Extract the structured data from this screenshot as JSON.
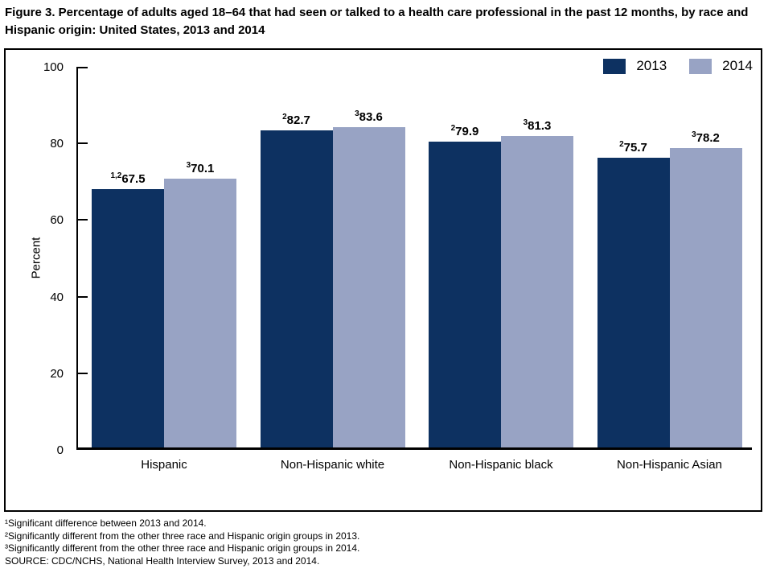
{
  "title": "Figure 3. Percentage of adults aged 18–64 that had seen or talked to a health care professional in the past 12 months, by race and Hispanic origin: United States, 2013 and 2014",
  "legend": {
    "items": [
      {
        "label": "2013",
        "color": "#0d3161"
      },
      {
        "label": "2014",
        "color": "#98a3c4"
      }
    ]
  },
  "chart_data": {
    "type": "bar",
    "title": "Figure 3. Percentage of adults aged 18–64 that had seen or talked to a health care professional in the past 12 months, by race and Hispanic origin: United States, 2013 and 2014",
    "categories": [
      "Hispanic",
      "Non-Hispanic white",
      "Non-Hispanic black",
      "Non-Hispanic Asian"
    ],
    "series": [
      {
        "name": "2013",
        "color": "#0d3161",
        "values": [
          67.5,
          82.7,
          79.9,
          75.7
        ],
        "superscripts": [
          "1,2",
          "2",
          "2",
          "2"
        ]
      },
      {
        "name": "2014",
        "color": "#98a3c4",
        "values": [
          70.1,
          83.6,
          81.3,
          78.2
        ],
        "superscripts": [
          "3",
          "3",
          "3",
          "3"
        ]
      }
    ],
    "xlabel": "",
    "ylabel": "Percent",
    "ylim": [
      0,
      100
    ],
    "yticks": [
      0,
      20,
      40,
      60,
      80,
      100
    ],
    "grid": false,
    "legend_position": "top-right"
  },
  "footnotes": [
    "¹Significant difference between 2013 and 2014.",
    "²Significantly different from the other three race and Hispanic origin groups in 2013.",
    "³Significantly different from the other three race and Hispanic origin groups in 2014."
  ],
  "source": "SOURCE: CDC/NCHS, National Health Interview Survey, 2013 and 2014."
}
